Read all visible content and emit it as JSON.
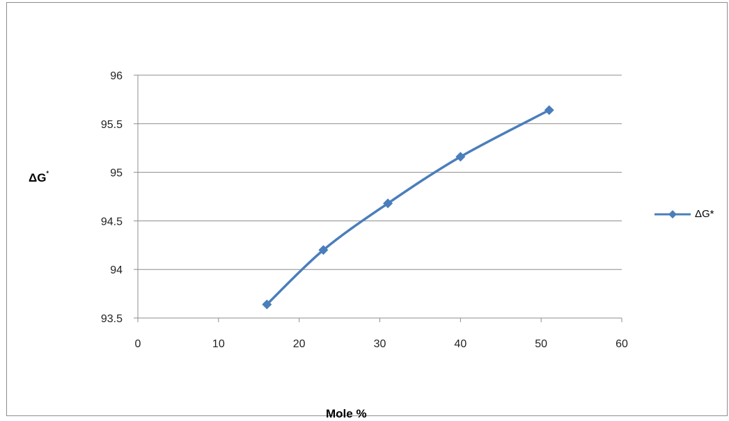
{
  "chart_data": {
    "type": "line",
    "title": "",
    "xlabel": "Mole %",
    "ylabel": "ΔG",
    "ylabel_superscript": "*",
    "xlim": [
      0,
      60
    ],
    "ylim": [
      93.5,
      96
    ],
    "xticks": [
      "0",
      "10",
      "20",
      "30",
      "40",
      "50",
      "60"
    ],
    "yticks": [
      "93.5",
      "94",
      "94.5",
      "95",
      "95.5",
      "96"
    ],
    "grid": "horizontal",
    "legend_position": "right",
    "series": [
      {
        "name": "ΔG*",
        "color": "#4a7ebb",
        "marker": "diamond",
        "x": [
          16,
          23,
          31,
          40,
          51
        ],
        "y": [
          93.64,
          94.2,
          94.68,
          95.16,
          95.64
        ]
      }
    ]
  }
}
